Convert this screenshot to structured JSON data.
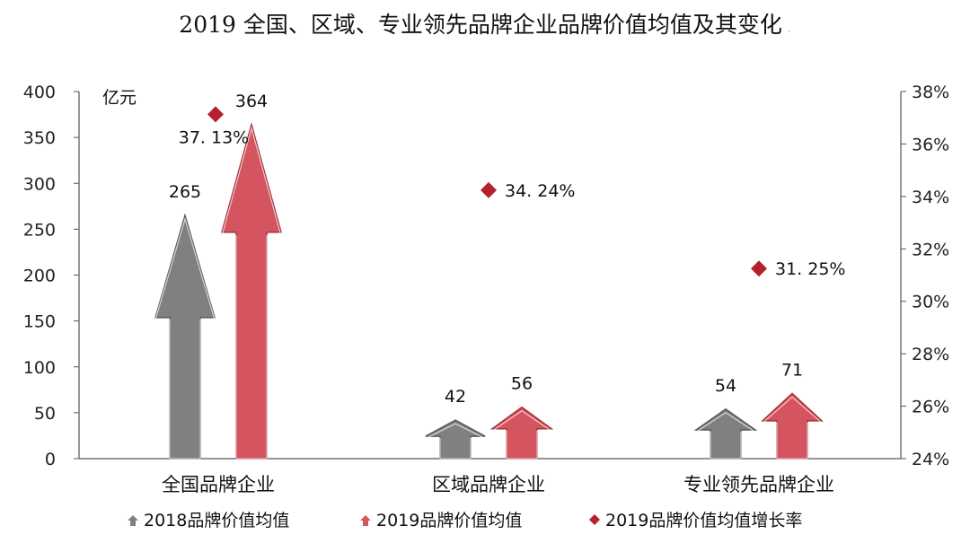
{
  "chart_data": {
    "type": "bar",
    "title": "2019 全国、区域、专业领先品牌企业品牌价值均值及其变化",
    "title_suffix": ".",
    "ylabel": "亿元",
    "ylim": [
      0,
      400
    ],
    "yticks": [
      "0",
      "50",
      "100",
      "150",
      "200",
      "250",
      "300",
      "350",
      "400"
    ],
    "y2lim": [
      24,
      38
    ],
    "y2ticks": [
      "24%",
      "26%",
      "28%",
      "30%",
      "32%",
      "34%",
      "36%",
      "38%"
    ],
    "categories": [
      "全国品牌企业",
      "区域品牌企业",
      "专业领先品牌企业"
    ],
    "series": [
      {
        "name": "2018品牌价值均值",
        "values": [
          265,
          42,
          54
        ],
        "labels": [
          "265",
          "42",
          "54"
        ],
        "color": "#808080",
        "axis": "left",
        "style": "arrow"
      },
      {
        "name": "2019品牌价值均值",
        "values": [
          364,
          56,
          71
        ],
        "labels": [
          "364",
          "56",
          "71"
        ],
        "color": "#d4545f",
        "axis": "left",
        "style": "arrow"
      },
      {
        "name": "2019品牌价值均值增长率",
        "values": [
          37.13,
          34.24,
          31.25
        ],
        "labels": [
          "37. 13%",
          "34. 24%",
          "31. 25%"
        ],
        "color": "#b5202e",
        "axis": "right",
        "style": "diamond"
      }
    ],
    "legend_position": "bottom",
    "grid": false
  }
}
